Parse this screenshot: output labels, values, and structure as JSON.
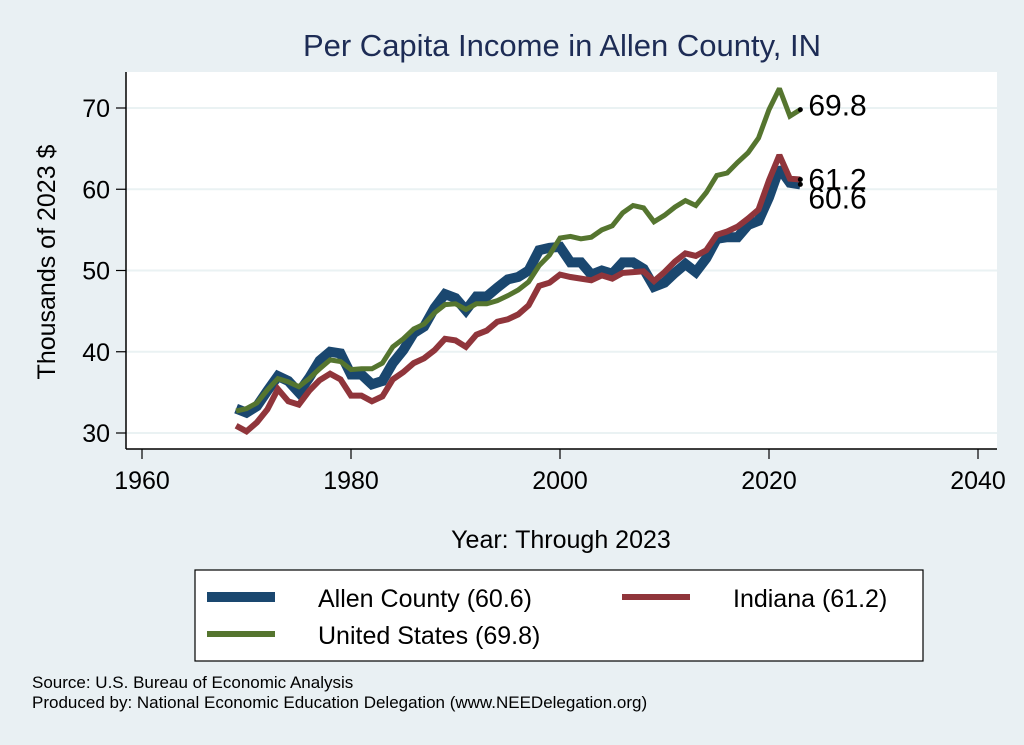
{
  "chart_data": {
    "type": "line",
    "title": "Per Capita Income in Allen County, IN",
    "xlabel": "Year: Through 2023",
    "ylabel": "Thousands of 2023 $",
    "xlim": [
      1958.5,
      2041.8
    ],
    "ylim": [
      28.0,
      74.5
    ],
    "xticks": [
      1960,
      1980,
      2000,
      2020,
      2040
    ],
    "xtick_labels": [
      "1960",
      "1980",
      "2000",
      "2020",
      "2040"
    ],
    "yticks": [
      30,
      40,
      50,
      60,
      70
    ],
    "ytick_labels": [
      "30",
      "40",
      "50",
      "60",
      "70"
    ],
    "grid": "horizontal",
    "legend_position": "bottom",
    "x": [
      1969,
      1970,
      1971,
      1972,
      1973,
      1974,
      1975,
      1976,
      1977,
      1978,
      1979,
      1980,
      1981,
      1982,
      1983,
      1984,
      1985,
      1986,
      1987,
      1988,
      1989,
      1990,
      1991,
      1992,
      1993,
      1994,
      1995,
      1996,
      1997,
      1998,
      1999,
      2000,
      2001,
      2002,
      2003,
      2004,
      2005,
      2006,
      2007,
      2008,
      2009,
      2010,
      2011,
      2012,
      2013,
      2014,
      2015,
      2016,
      2017,
      2018,
      2019,
      2020,
      2021,
      2022,
      2023
    ],
    "series": [
      {
        "name": "Allen County",
        "legend_label": "Allen County (60.6)",
        "color": "#1a476f",
        "end_value": 60.6,
        "end_label": "60.6",
        "values": [
          33.0,
          32.5,
          33.3,
          35.2,
          37.0,
          36.4,
          35.0,
          36.8,
          38.9,
          40.0,
          39.8,
          37.2,
          37.2,
          36.0,
          36.4,
          38.6,
          40.2,
          42.3,
          43.1,
          45.4,
          47.1,
          46.6,
          45.1,
          46.8,
          46.8,
          47.9,
          48.9,
          49.2,
          50.0,
          52.5,
          52.8,
          52.9,
          51.0,
          51.0,
          49.5,
          50.0,
          49.6,
          51.0,
          51.0,
          50.2,
          48.0,
          48.5,
          49.7,
          50.8,
          49.8,
          51.5,
          53.9,
          54.1,
          54.1,
          55.6,
          56.1,
          59.0,
          62.6,
          60.8,
          60.6
        ]
      },
      {
        "name": "Indiana",
        "legend_label": "Indiana (61.2)",
        "color": "#90353b",
        "end_value": 61.2,
        "end_label": "61.2",
        "values": [
          30.9,
          30.2,
          31.3,
          32.9,
          35.4,
          33.9,
          33.5,
          35.2,
          36.5,
          37.3,
          36.6,
          34.6,
          34.6,
          33.9,
          34.5,
          36.6,
          37.5,
          38.6,
          39.2,
          40.2,
          41.6,
          41.4,
          40.6,
          42.1,
          42.6,
          43.7,
          44.0,
          44.6,
          45.7,
          48.1,
          48.5,
          49.5,
          49.2,
          49.0,
          48.8,
          49.4,
          49.0,
          49.7,
          49.8,
          49.9,
          48.7,
          49.8,
          51.1,
          52.1,
          51.8,
          52.5,
          54.4,
          54.8,
          55.4,
          56.4,
          57.5,
          61.1,
          64.2,
          61.3,
          61.2
        ]
      },
      {
        "name": "United States",
        "legend_label": "United States (69.8)",
        "color": "#55752f",
        "end_value": 69.8,
        "end_label": "69.8",
        "values": [
          32.7,
          33.0,
          33.7,
          35.3,
          36.7,
          36.3,
          35.7,
          36.7,
          37.9,
          39.0,
          38.8,
          37.8,
          37.9,
          37.9,
          38.6,
          40.6,
          41.6,
          42.8,
          43.4,
          44.8,
          45.8,
          45.9,
          45.2,
          45.9,
          45.9,
          46.3,
          46.9,
          47.6,
          48.6,
          50.6,
          51.9,
          54.0,
          54.2,
          53.9,
          54.1,
          55.0,
          55.5,
          57.1,
          58.0,
          57.7,
          56.0,
          56.8,
          57.8,
          58.6,
          58.0,
          59.6,
          61.7,
          62.0,
          63.3,
          64.5,
          66.3,
          69.8,
          72.4,
          69.0,
          69.8
        ]
      }
    ]
  },
  "notes": {
    "source": "Source: U.S. Bureau of Economic Analysis",
    "produced_by": "Produced by: National Economic Education Delegation (www.NEEDelegation.org)"
  },
  "colors": {
    "background": "#e9f0f3",
    "plot_background": "#ffffff",
    "title": "#1d2c55",
    "gridline": "#eaf2f3"
  }
}
